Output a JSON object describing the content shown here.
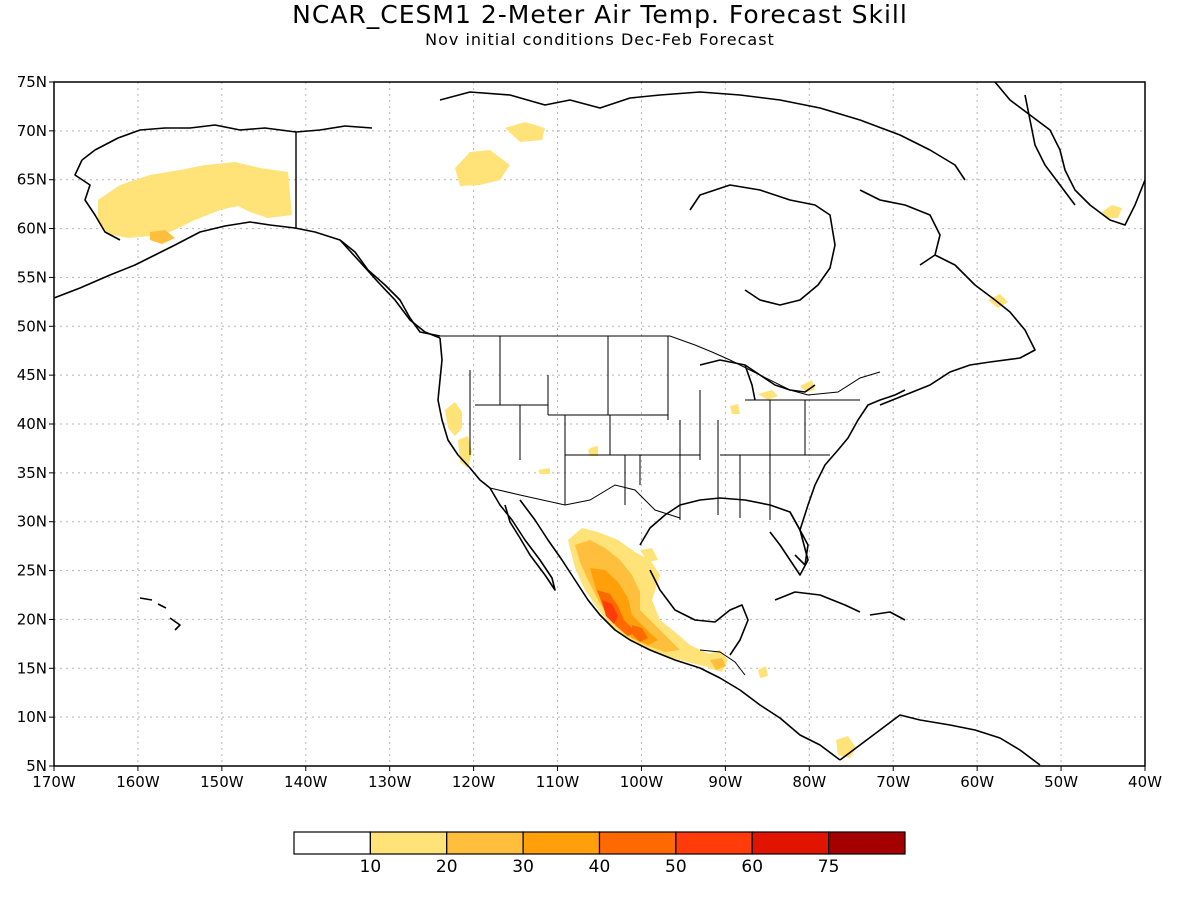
{
  "title": "NCAR_CESM1 2-Meter Air Temp. Forecast Skill",
  "subtitle": "Nov initial conditions  Dec-Feb Forecast",
  "lat_labels": [
    "75N",
    "70N",
    "65N",
    "60N",
    "55N",
    "50N",
    "45N",
    "40N",
    "35N",
    "30N",
    "25N",
    "20N",
    "15N",
    "10N",
    "5N"
  ],
  "lon_labels": [
    "170W",
    "160W",
    "150W",
    "140W",
    "130W",
    "120W",
    "110W",
    "100W",
    "90W",
    "80W",
    "70W",
    "60W",
    "50W",
    "40W"
  ],
  "colorbar": {
    "colors": [
      "#ffffff",
      "#ffe278",
      "#ffbf3c",
      "#ffa00a",
      "#ff6a00",
      "#ff3c0a",
      "#e11400",
      "#a50000"
    ],
    "labels": [
      "10",
      "20",
      "30",
      "40",
      "50",
      "60",
      "75"
    ]
  },
  "colors": {
    "frame": "#000000",
    "coast": "#000000",
    "grid": "#b4b4b4"
  }
}
